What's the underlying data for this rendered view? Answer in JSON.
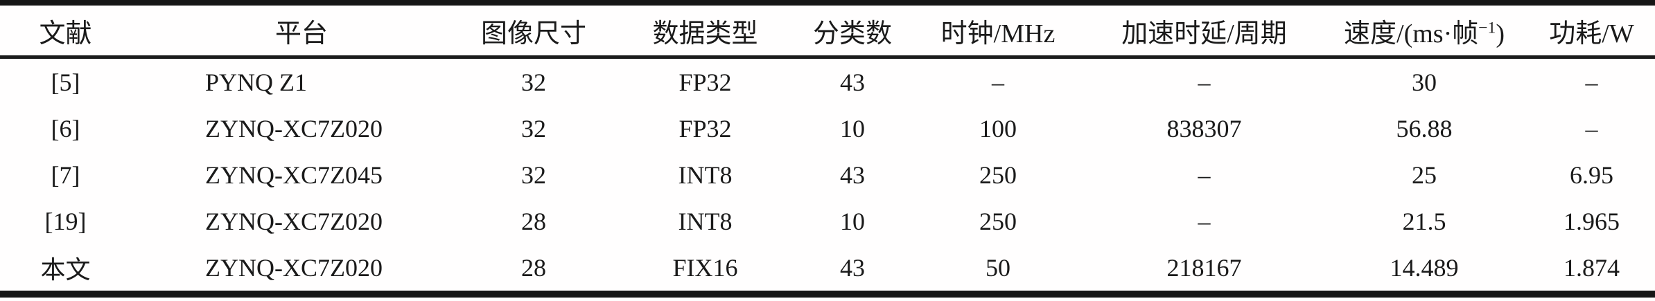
{
  "table": {
    "columns": [
      {
        "key": "reference",
        "label": "文献"
      },
      {
        "key": "platform",
        "label": "平台"
      },
      {
        "key": "image_size",
        "label": "图像尺寸"
      },
      {
        "key": "data_type",
        "label": "数据类型"
      },
      {
        "key": "class_count",
        "label": "分类数"
      },
      {
        "key": "clock_mhz",
        "label": "时钟/MHz"
      },
      {
        "key": "latency_cycles",
        "label": "加速时延/周期"
      },
      {
        "key": "speed",
        "label": "速度/(ms·帧",
        "sup": "−1",
        "label_end": ")"
      },
      {
        "key": "power_w",
        "label": "功耗/W"
      }
    ],
    "rows": [
      [
        "[5]",
        "PYNQ Z1",
        "32",
        "FP32",
        "43",
        "–",
        "–",
        "30",
        "–"
      ],
      [
        "[6]",
        "ZYNQ-XC7Z020",
        "32",
        "FP32",
        "10",
        "100",
        "838307",
        "56.88",
        "–"
      ],
      [
        "[7]",
        "ZYNQ-XC7Z045",
        "32",
        "INT8",
        "43",
        "250",
        "–",
        "25",
        "6.95"
      ],
      [
        "[19]",
        "ZYNQ-XC7Z020",
        "28",
        "INT8",
        "10",
        "250",
        "–",
        "21.5",
        "1.965"
      ],
      [
        "本文",
        "ZYNQ-XC7Z020",
        "28",
        "FIX16",
        "43",
        "50",
        "218167",
        "14.489",
        "1.874"
      ]
    ]
  },
  "colors": {
    "text": "#1a1a1a",
    "rule": "#161616",
    "background": "#fffefe"
  }
}
